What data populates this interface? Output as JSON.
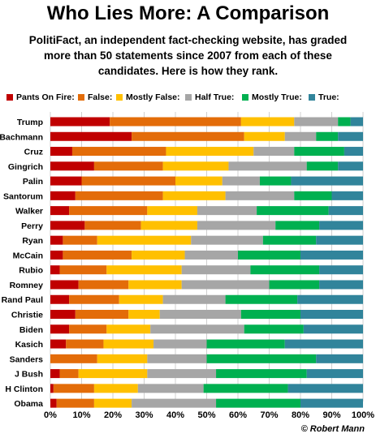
{
  "title": "Who Lies More: A Comparison",
  "subtitle": "PolitiFact, an independent fact-checking website, has graded more than 50 statements since 2007 from each of these candidates. Here is how they rank.",
  "credit": "© Robert Mann",
  "colors": {
    "pants_on_fire": "#c00000",
    "false": "#e36c09",
    "mostly_false": "#ffc000",
    "half_true": "#a6a6a6",
    "mostly_true": "#00b050",
    "true": "#31849b",
    "grid": "#d0d0d0"
  },
  "legend": [
    {
      "label": "Pants On Fire:",
      "color": "#c00000"
    },
    {
      "label": "False:",
      "color": "#e36c09"
    },
    {
      "label": "Mostly False:",
      "color": "#ffc000"
    },
    {
      "label": "Half True:",
      "color": "#a6a6a6"
    },
    {
      "label": "Mostly True:",
      "color": "#00b050"
    },
    {
      "label": "True:",
      "color": "#31849b"
    }
  ],
  "chart_data": {
    "type": "bar",
    "orientation": "horizontal",
    "stacked": true,
    "percent": true,
    "title": "Who Lies More: A Comparison",
    "xlim": [
      0,
      100
    ],
    "xticks": [
      "0%",
      "10%",
      "20%",
      "30%",
      "40%",
      "50%",
      "60%",
      "70%",
      "80%",
      "90%",
      "100%"
    ],
    "grid": true,
    "legend_position": "top",
    "categories": [
      "Trump",
      "Bachmann",
      "Cruz",
      "Gingrich",
      "Palin",
      "Santorum",
      "Walker",
      "Perry",
      "Ryan",
      "McCain",
      "Rubio",
      "Romney",
      "Rand Paul",
      "Christie",
      "Biden",
      "Kasich",
      "Sanders",
      "J Bush",
      "H Clinton",
      "Obama"
    ],
    "series": [
      {
        "name": "Pants On Fire:",
        "values": [
          19,
          26,
          7,
          14,
          10,
          8,
          6,
          11,
          4,
          4,
          3,
          9,
          6,
          8,
          6,
          5,
          0,
          3,
          1,
          2
        ]
      },
      {
        "name": "False:",
        "values": [
          42,
          36,
          30,
          22,
          30,
          28,
          25,
          18,
          11,
          22,
          15,
          16,
          16,
          17,
          12,
          12,
          15,
          6,
          13,
          12
        ]
      },
      {
        "name": "Mostly False:",
        "values": [
          17,
          13,
          28,
          21,
          15,
          20,
          16,
          18,
          30,
          17,
          24,
          17,
          14,
          10,
          14,
          16,
          16,
          22,
          14,
          12
        ]
      },
      {
        "name": "Half True:",
        "values": [
          14,
          10,
          13,
          25,
          12,
          22,
          19,
          25,
          23,
          17,
          22,
          28,
          20,
          26,
          30,
          17,
          19,
          22,
          21,
          27
        ]
      },
      {
        "name": "Mostly True:",
        "values": [
          4,
          7,
          16,
          10,
          10,
          12,
          23,
          14,
          17,
          20,
          22,
          16,
          23,
          19,
          19,
          25,
          35,
          29,
          27,
          27
        ]
      },
      {
        "name": "True:",
        "values": [
          4,
          8,
          6,
          8,
          23,
          10,
          11,
          14,
          15,
          20,
          14,
          14,
          21,
          20,
          19,
          25,
          15,
          18,
          24,
          20
        ]
      }
    ]
  }
}
